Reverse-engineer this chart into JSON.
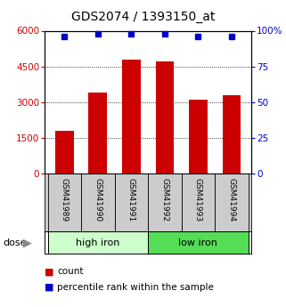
{
  "title": "GDS2074 / 1393150_at",
  "categories": [
    "GSM41989",
    "GSM41990",
    "GSM41991",
    "GSM41992",
    "GSM41993",
    "GSM41994"
  ],
  "bar_values": [
    1800,
    3400,
    4800,
    4700,
    3100,
    3300
  ],
  "percentile_values": [
    96,
    98,
    98,
    98,
    96,
    96
  ],
  "bar_color": "#cc0000",
  "dot_color": "#0000cc",
  "left_ylim": [
    0,
    6000
  ],
  "right_ylim": [
    0,
    100
  ],
  "left_yticks": [
    0,
    1500,
    3000,
    4500,
    6000
  ],
  "right_yticks": [
    0,
    25,
    50,
    75,
    100
  ],
  "right_yticklabels": [
    "0",
    "25",
    "50",
    "75",
    "100%"
  ],
  "group1_label": "high iron",
  "group2_label": "low iron",
  "group1_color": "#ccffcc",
  "group2_color": "#55dd55",
  "dose_label": "dose",
  "legend_count": "count",
  "legend_percentile": "percentile rank within the sample",
  "background_color": "#ffffff",
  "plot_bg": "#ffffff",
  "title_fontsize": 10,
  "tick_fontsize": 7.5,
  "bar_label_fontsize": 6.5,
  "group_fontsize": 8,
  "legend_fontsize": 7.5,
  "dose_fontsize": 8
}
